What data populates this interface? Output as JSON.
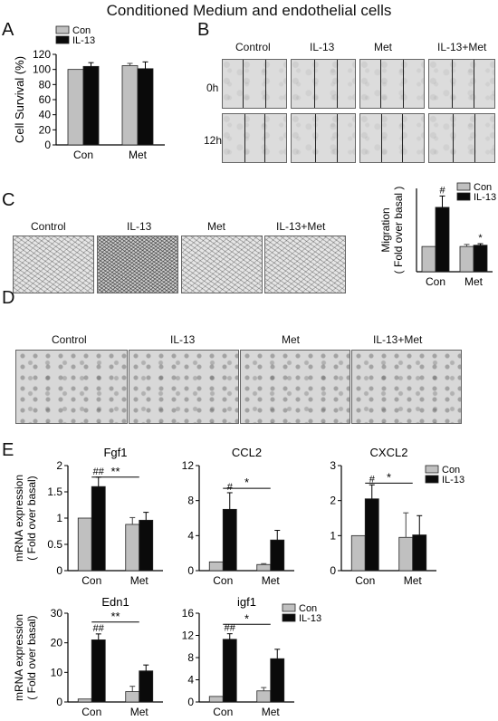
{
  "title": "Conditioned Medium and endothelial cells",
  "panel_labels": {
    "a": "A",
    "b": "B",
    "c": "C",
    "d": "D",
    "e": "E"
  },
  "legend": {
    "con": "Con",
    "il13": "IL-13"
  },
  "colors": {
    "con": "#c0c0c0",
    "il13": "#0a0a0a"
  },
  "panel_b": {
    "columns": [
      "Control",
      "IL-13",
      "Met",
      "IL-13+Met"
    ],
    "rows": [
      "0h",
      "12h"
    ]
  },
  "panel_c": {
    "images": [
      "Control",
      "IL-13",
      "Met",
      "IL-13+Met"
    ]
  },
  "panel_d": {
    "images": [
      "Control",
      "IL-13",
      "Met",
      "IL-13+Met"
    ]
  },
  "chart_data": [
    {
      "id": "A",
      "type": "bar",
      "ylabel": "Cell Survival (%)",
      "categories": [
        "Con",
        "Met"
      ],
      "ylim": [
        0,
        120
      ],
      "yticks": [
        0,
        20,
        40,
        60,
        80,
        100,
        120
      ],
      "series": [
        {
          "name": "Con",
          "values": [
            100,
            105
          ],
          "err": [
            0,
            3
          ]
        },
        {
          "name": "IL-13",
          "values": [
            104,
            101
          ],
          "err": [
            5,
            9
          ]
        }
      ],
      "annotations": []
    },
    {
      "id": "C",
      "type": "bar",
      "ylabel": "Migration",
      "ylabel2": "( Fold over basal )",
      "categories": [
        "Con",
        "Met"
      ],
      "ylim": [
        0,
        3.3
      ],
      "yticks": [],
      "series": [
        {
          "name": "Con",
          "values": [
            1,
            1
          ],
          "err": [
            0,
            0.08
          ]
        },
        {
          "name": "IL-13",
          "values": [
            2.55,
            1.05
          ],
          "err": [
            0.45,
            0.06
          ]
        }
      ],
      "annotations": [
        {
          "text": "#",
          "cat": 0,
          "ser": 1
        },
        {
          "text": "*",
          "cat": 1,
          "ser": 1
        }
      ]
    },
    {
      "id": "Fgf1",
      "type": "bar",
      "title": "Fgf1",
      "ylabel": "mRNA expression",
      "ylabel2": "( Fold over basal)",
      "categories": [
        "Con",
        "Met"
      ],
      "ylim": [
        0,
        2
      ],
      "yticks": [
        0,
        0.5,
        1,
        1.5,
        2
      ],
      "yticklabels": [
        "0",
        "0.5",
        "1",
        "1.5",
        "2"
      ],
      "series": [
        {
          "name": "Con",
          "values": [
            1,
            0.88
          ],
          "err": [
            0,
            0.13
          ]
        },
        {
          "name": "IL-13",
          "values": [
            1.6,
            0.96
          ],
          "err": [
            0.18,
            0.15
          ]
        }
      ],
      "annotations": [
        {
          "text": "##",
          "cat": 0,
          "ser": 1
        }
      ],
      "bracket": {
        "text": "**",
        "y": 1.78
      }
    },
    {
      "id": "CCL2",
      "type": "bar",
      "title": "CCL2",
      "ylabel": "",
      "ylabel2": "",
      "categories": [
        "Con",
        "Met"
      ],
      "ylim": [
        0,
        12
      ],
      "yticks": [
        0,
        4,
        8,
        12
      ],
      "yticklabels": [
        "0",
        "4",
        "8",
        "12"
      ],
      "series": [
        {
          "name": "Con",
          "values": [
            1,
            0.7
          ],
          "err": [
            0,
            0.1
          ]
        },
        {
          "name": "IL-13",
          "values": [
            7,
            3.5
          ],
          "err": [
            1.9,
            1.1
          ]
        }
      ],
      "annotations": [
        {
          "text": "#",
          "cat": 0,
          "ser": 1
        }
      ],
      "bracket": {
        "text": "*",
        "y": 9.4
      }
    },
    {
      "id": "CXCL2",
      "type": "bar",
      "title": "CXCL2",
      "ylabel": "",
      "ylabel2": "",
      "categories": [
        "Con",
        "Met"
      ],
      "ylim": [
        0,
        3
      ],
      "yticks": [
        0,
        1,
        2,
        3
      ],
      "yticklabels": [
        "0",
        "1",
        "2",
        "3"
      ],
      "series": [
        {
          "name": "Con",
          "values": [
            1,
            0.95
          ],
          "err": [
            0,
            0.7
          ]
        },
        {
          "name": "IL-13",
          "values": [
            2.05,
            1.02
          ],
          "err": [
            0.4,
            0.55
          ]
        }
      ],
      "annotations": [
        {
          "text": "#",
          "cat": 0,
          "ser": 1
        }
      ],
      "bracket": {
        "text": "*",
        "y": 2.5
      }
    },
    {
      "id": "Edn1",
      "type": "bar",
      "title": "Edn1",
      "ylabel": "mRNA expression",
      "ylabel2": "( Fold over basal)",
      "categories": [
        "Con",
        "Met"
      ],
      "ylim": [
        0,
        30
      ],
      "yticks": [
        0,
        10,
        20,
        30
      ],
      "yticklabels": [
        "0",
        "10",
        "20",
        "30"
      ],
      "series": [
        {
          "name": "Con",
          "values": [
            1,
            3.5
          ],
          "err": [
            0,
            1.8
          ]
        },
        {
          "name": "IL-13",
          "values": [
            21,
            10.5
          ],
          "err": [
            2,
            2
          ]
        }
      ],
      "annotations": [
        {
          "text": "##",
          "cat": 0,
          "ser": 1
        }
      ],
      "bracket": {
        "text": "**",
        "y": 27
      }
    },
    {
      "id": "igf1",
      "type": "bar",
      "title": "igf1",
      "ylabel": "",
      "ylabel2": "",
      "categories": [
        "Con",
        "Met"
      ],
      "ylim": [
        0,
        16
      ],
      "yticks": [
        0,
        4,
        8,
        12,
        16
      ],
      "yticklabels": [
        "0",
        "4",
        "8",
        "12",
        "16"
      ],
      "series": [
        {
          "name": "Con",
          "values": [
            1,
            2
          ],
          "err": [
            0,
            0.6
          ]
        },
        {
          "name": "IL-13",
          "values": [
            11.3,
            7.8
          ],
          "err": [
            1,
            1.7
          ]
        }
      ],
      "annotations": [
        {
          "text": "##",
          "cat": 0,
          "ser": 1
        }
      ],
      "bracket": {
        "text": "*",
        "y": 14
      }
    }
  ]
}
